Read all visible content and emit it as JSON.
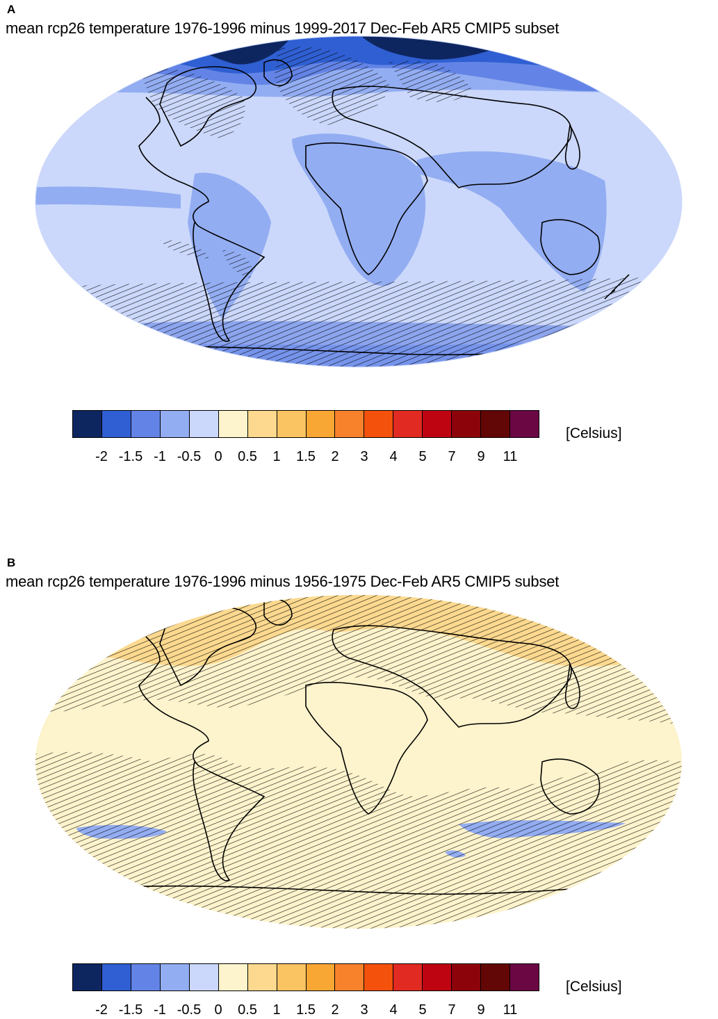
{
  "panels": [
    {
      "letter": "A",
      "title": "mean rcp26 temperature 1976-1996 minus 1999-2017 Dec-Feb AR5 CMIP5 subset"
    },
    {
      "letter": "B",
      "title": "mean rcp26 temperature 1976-1996 minus 1956-1975 Dec-Feb AR5 CMIP5 subset"
    }
  ],
  "colorbar": {
    "unit_label": "[Celsius]",
    "tick_labels": [
      "-2",
      "-1.5",
      "-1",
      "-0.5",
      "0",
      "0.5",
      "1",
      "1.5",
      "2",
      "3",
      "4",
      "5",
      "7",
      "9",
      "11"
    ],
    "colors": [
      "#0e2660",
      "#2f5fd2",
      "#6384e6",
      "#93adf2",
      "#cbd8fb",
      "#fdf3cc",
      "#fcd98f",
      "#fbc462",
      "#f9a734",
      "#f8822c",
      "#f4520c",
      "#e12a22",
      "#be0410",
      "#8c0409",
      "#620706",
      "#6b0843"
    ]
  },
  "map_colors": {
    "ocean_edge": "#cbd8fb",
    "a_base": "#cbd8fb",
    "a_mid": "#93adf2",
    "a_strong": "#6384e6",
    "a_very_strong": "#2f5fd2",
    "a_extreme": "#0e2660",
    "b_base": "#fdf3cc",
    "b_warm": "#fcd98f",
    "b_cool": "#93adf2"
  }
}
